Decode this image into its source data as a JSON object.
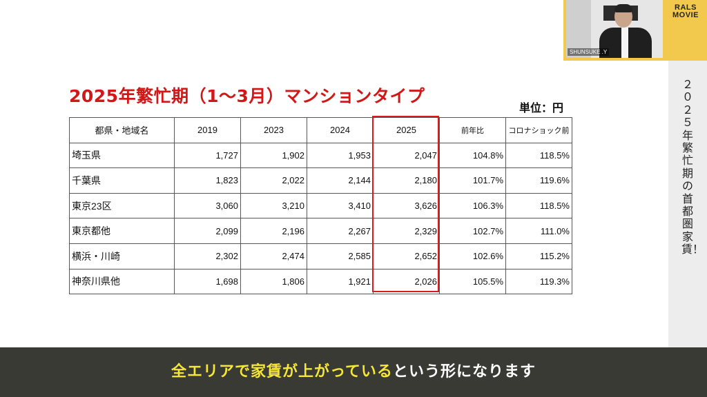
{
  "slide": {
    "title": "2025年繁忙期（1～3月）マンションタイプ",
    "unit_label": "単位：円"
  },
  "table": {
    "headers": [
      "都県・地域名",
      "2019",
      "2023",
      "2024",
      "2025",
      "前年比",
      "コロナショック前"
    ],
    "rows": [
      {
        "region": "埼玉県",
        "v2019": "1,727",
        "v2023": "1,902",
        "v2024": "1,953",
        "v2025": "2,047",
        "yoy": "104.8%",
        "precovid": "118.5%"
      },
      {
        "region": "千葉県",
        "v2019": "1,823",
        "v2023": "2,022",
        "v2024": "2,144",
        "v2025": "2,180",
        "yoy": "101.7%",
        "precovid": "119.6%"
      },
      {
        "region": "東京23区",
        "v2019": "3,060",
        "v2023": "3,210",
        "v2024": "3,410",
        "v2025": "3,626",
        "yoy": "106.3%",
        "precovid": "118.5%"
      },
      {
        "region": "東京都他",
        "v2019": "2,099",
        "v2023": "2,196",
        "v2024": "2,267",
        "v2025": "2,329",
        "yoy": "102.7%",
        "precovid": "111.0%"
      },
      {
        "region": "横浜・川崎",
        "v2019": "2,302",
        "v2023": "2,474",
        "v2024": "2,585",
        "v2025": "2,652",
        "yoy": "102.6%",
        "precovid": "115.2%"
      },
      {
        "region": "神奈川県他",
        "v2019": "1,698",
        "v2023": "1,806",
        "v2024": "1,921",
        "v2025": "2,026",
        "yoy": "105.5%",
        "precovid": "119.3%"
      }
    ],
    "highlight_color": "#dd1a1a"
  },
  "sidebar": {
    "vertical_title": "２０２５年繁忙期の首都圏家賃！"
  },
  "webcam": {
    "name_label": "SHUNSUKE .Y",
    "logo_line1": "RALS",
    "logo_line2": "MOVIE"
  },
  "caption": {
    "highlight_text": "全エリアで家賃が上がっている",
    "rest_text": "という形になります",
    "highlight_color": "#f5e63a"
  },
  "colors": {
    "title_red": "#d01818",
    "caption_bg": "#3a3a34",
    "webcam_frame": "#f2c94c"
  }
}
